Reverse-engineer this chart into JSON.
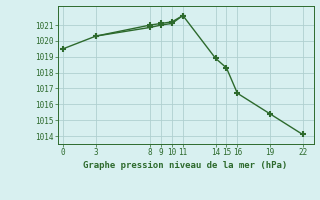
{
  "line1_x": [
    0,
    3,
    8,
    9,
    10,
    11
  ],
  "line1_y": [
    1019.5,
    1020.3,
    1021.0,
    1021.1,
    1021.2,
    1021.6
  ],
  "line2_x": [
    3,
    8,
    9,
    10,
    11,
    14,
    15,
    16,
    19,
    22
  ],
  "line2_y": [
    1020.3,
    1020.85,
    1021.0,
    1021.1,
    1021.6,
    1018.9,
    1018.3,
    1016.7,
    1015.4,
    1014.1
  ],
  "line_color": "#2d6a2d",
  "bg_color": "#d8f0f0",
  "grid_color": "#b0d0d0",
  "xlabel": "Graphe pression niveau de la mer (hPa)",
  "xlim": [
    -0.5,
    23
  ],
  "ylim": [
    1013.5,
    1022.2
  ],
  "xticks": [
    0,
    3,
    8,
    9,
    10,
    11,
    14,
    15,
    16,
    19,
    22
  ],
  "yticks": [
    1014,
    1015,
    1016,
    1017,
    1018,
    1019,
    1020,
    1021
  ],
  "marker": "+",
  "linewidth": 1.0,
  "markersize": 4,
  "markeredgewidth": 1.5
}
